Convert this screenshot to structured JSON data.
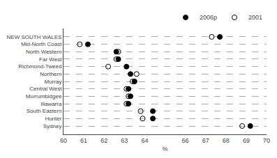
{
  "chart_data": {
    "type": "dot",
    "categories": [
      "NEW SOUTH WALES",
      "Mid-North Coast",
      "North Western",
      "Far West",
      "Richmond-Tweed",
      "Northern",
      "Murray",
      "Central West",
      "Murrumbidgee",
      "Illawarra",
      "South Eastern",
      "Hunter",
      "Sydney"
    ],
    "series": [
      {
        "name": "2006p",
        "color": "#000000",
        "marker": "circle",
        "values": [
          67.7,
          61.2,
          62.6,
          62.7,
          63.1,
          63.3,
          63.5,
          63.2,
          63.3,
          63.2,
          64.4,
          64.4,
          69.2
        ]
      },
      {
        "name": "2001",
        "color": "#000000",
        "marker": "circle-open",
        "values": [
          67.3,
          60.8,
          62.7,
          62.6,
          62.2,
          63.6,
          63.4,
          63.1,
          63.2,
          63.1,
          63.8,
          63.9,
          68.8
        ]
      }
    ],
    "x_label": "%",
    "xlim": [
      60,
      70
    ],
    "xticks": [
      60,
      61,
      62,
      63,
      64,
      66,
      67,
      68,
      69,
      70
    ],
    "grid": true,
    "legend": "top right"
  }
}
